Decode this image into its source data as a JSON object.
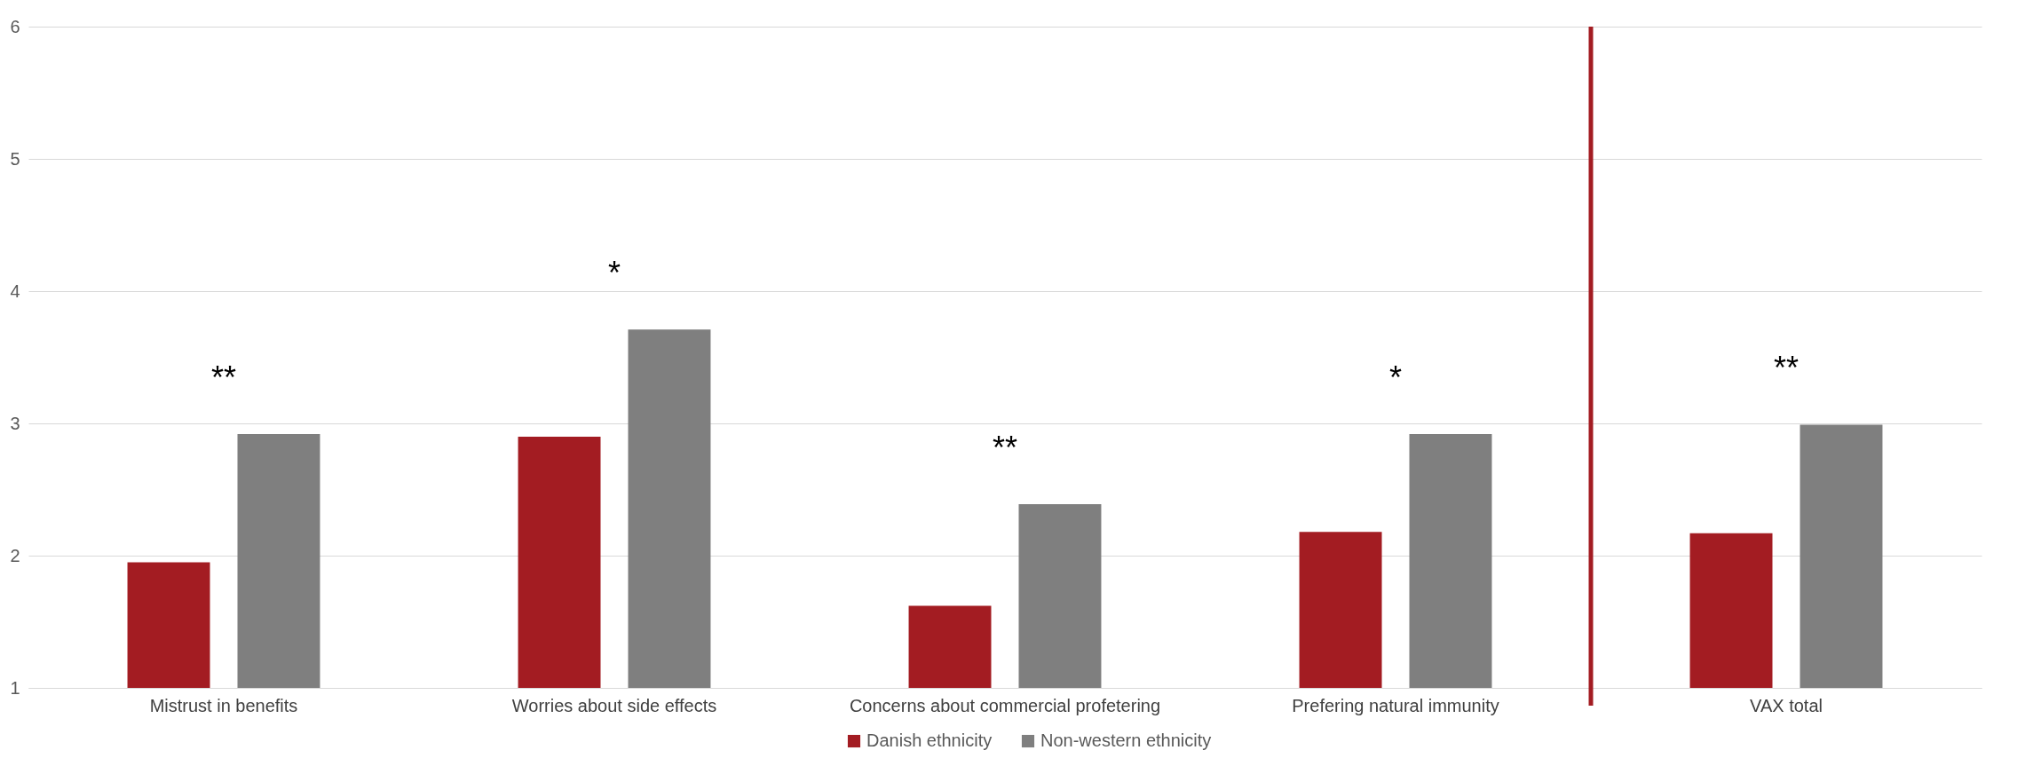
{
  "chart_data": {
    "type": "bar",
    "categories": [
      "Mistrust in benefits",
      "Worries about side effects",
      "Concerns about commercial profetering",
      "Prefering natural immunity",
      "VAX total"
    ],
    "series": [
      {
        "name": "Danish ethnicity",
        "color": "#a31c22",
        "values": [
          1.95,
          2.9,
          1.62,
          2.18,
          2.17
        ]
      },
      {
        "name": "Non-western ethnicity",
        "color": "#7f7f7f",
        "values": [
          2.92,
          3.71,
          2.39,
          2.92,
          2.99
        ]
      }
    ],
    "ylim": [
      1,
      6
    ],
    "yticks": [
      1,
      2,
      3,
      4,
      5,
      6
    ],
    "grid": "y",
    "legend": "bottom",
    "ref_lines": [
      {
        "axis": "x",
        "value": "VAX total",
        "color": "#a31c22"
      }
    ],
    "annotations": [
      "**",
      "*",
      "**",
      "*",
      "**"
    ]
  }
}
